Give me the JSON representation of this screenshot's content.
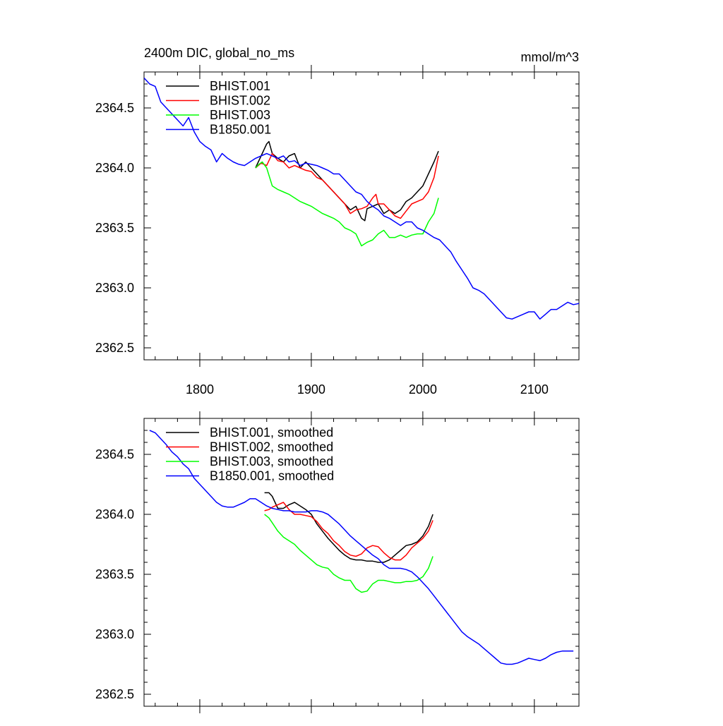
{
  "figure": {
    "title_left": "2400m DIC, global_no_ms",
    "title_right": "mmol/m^3"
  },
  "chart_data": [
    {
      "type": "line",
      "panel": "top",
      "title": "2400m DIC, global_no_ms",
      "units": "mmol/m^3",
      "xlim": [
        1750,
        2140
      ],
      "ylim": [
        2362.4,
        2364.8
      ],
      "xticks": [
        1800,
        1900,
        2000,
        2100
      ],
      "xtick_labels": [
        "1800",
        "1900",
        "2000",
        "2100"
      ],
      "yticks": [
        2362.5,
        2363.0,
        2363.5,
        2364.0,
        2364.5
      ],
      "ytick_labels": [
        "2362.5",
        "2363.0",
        "2363.5",
        "2364.0",
        "2364.5"
      ],
      "legend_position": "top-left",
      "series": [
        {
          "name": "BHIST.001",
          "color": "#000000",
          "x": [
            1850,
            1855,
            1860,
            1862,
            1865,
            1870,
            1875,
            1880,
            1885,
            1890,
            1895,
            1900,
            1905,
            1910,
            1915,
            1920,
            1925,
            1930,
            1935,
            1940,
            1945,
            1948,
            1950,
            1955,
            1960,
            1965,
            1970,
            1975,
            1980,
            1985,
            1990,
            1995,
            2000,
            2005,
            2010,
            2014
          ],
          "y": [
            2364.0,
            2364.1,
            2364.2,
            2364.22,
            2364.12,
            2364.08,
            2364.05,
            2364.1,
            2364.12,
            2364.0,
            2364.05,
            2364.0,
            2363.95,
            2363.9,
            2363.85,
            2363.8,
            2363.75,
            2363.7,
            2363.65,
            2363.68,
            2363.58,
            2363.56,
            2363.66,
            2363.68,
            2363.7,
            2363.62,
            2363.65,
            2363.62,
            2363.65,
            2363.72,
            2363.75,
            2363.8,
            2363.85,
            2363.95,
            2364.05,
            2364.14
          ]
        },
        {
          "name": "BHIST.002",
          "color": "#ff0000",
          "x": [
            1850,
            1855,
            1860,
            1865,
            1870,
            1875,
            1880,
            1885,
            1890,
            1895,
            1900,
            1905,
            1910,
            1915,
            1920,
            1925,
            1930,
            1935,
            1940,
            1945,
            1950,
            1955,
            1958,
            1960,
            1965,
            1970,
            1975,
            1980,
            1985,
            1990,
            1995,
            2000,
            2005,
            2010,
            2014
          ],
          "y": [
            2364.0,
            2364.04,
            2364.02,
            2364.12,
            2364.06,
            2364.05,
            2364.0,
            2364.02,
            2364.0,
            2363.98,
            2363.97,
            2363.92,
            2363.9,
            2363.85,
            2363.8,
            2363.75,
            2363.7,
            2363.62,
            2363.65,
            2363.66,
            2363.68,
            2363.75,
            2363.78,
            2363.7,
            2363.7,
            2363.65,
            2363.6,
            2363.58,
            2363.64,
            2363.7,
            2363.72,
            2363.74,
            2363.8,
            2363.92,
            2364.1
          ]
        },
        {
          "name": "BHIST.003",
          "color": "#00ff00",
          "x": [
            1850,
            1853,
            1856,
            1860,
            1865,
            1870,
            1875,
            1880,
            1885,
            1890,
            1895,
            1900,
            1905,
            1910,
            1915,
            1920,
            1925,
            1930,
            1935,
            1940,
            1945,
            1950,
            1955,
            1960,
            1965,
            1970,
            1975,
            1980,
            1985,
            1990,
            1995,
            2000,
            2005,
            2010,
            2014
          ],
          "y": [
            2364.0,
            2364.03,
            2364.05,
            2364.0,
            2363.85,
            2363.82,
            2363.8,
            2363.78,
            2363.75,
            2363.72,
            2363.7,
            2363.68,
            2363.65,
            2363.62,
            2363.6,
            2363.58,
            2363.55,
            2363.5,
            2363.48,
            2363.45,
            2363.35,
            2363.38,
            2363.4,
            2363.45,
            2363.48,
            2363.42,
            2363.42,
            2363.44,
            2363.42,
            2363.44,
            2363.45,
            2363.45,
            2363.55,
            2363.62,
            2363.75
          ]
        },
        {
          "name": "B1850.001",
          "color": "#0000ff",
          "x": [
            1750,
            1755,
            1760,
            1765,
            1770,
            1775,
            1780,
            1785,
            1790,
            1795,
            1800,
            1805,
            1810,
            1815,
            1820,
            1825,
            1830,
            1835,
            1840,
            1845,
            1850,
            1855,
            1860,
            1865,
            1870,
            1875,
            1880,
            1885,
            1890,
            1895,
            1900,
            1905,
            1910,
            1915,
            1920,
            1925,
            1930,
            1935,
            1940,
            1945,
            1950,
            1955,
            1960,
            1965,
            1970,
            1975,
            1980,
            1985,
            1990,
            1995,
            2000,
            2005,
            2010,
            2015,
            2020,
            2025,
            2030,
            2035,
            2040,
            2045,
            2050,
            2055,
            2060,
            2065,
            2070,
            2075,
            2080,
            2085,
            2090,
            2095,
            2100,
            2105,
            2110,
            2115,
            2120,
            2125,
            2130,
            2135,
            2140
          ],
          "y": [
            2364.75,
            2364.7,
            2364.68,
            2364.55,
            2364.5,
            2364.45,
            2364.4,
            2364.35,
            2364.42,
            2364.3,
            2364.22,
            2364.18,
            2364.15,
            2364.05,
            2364.12,
            2364.08,
            2364.05,
            2364.03,
            2364.02,
            2364.05,
            2364.08,
            2364.1,
            2364.12,
            2364.1,
            2364.08,
            2364.1,
            2364.05,
            2364.06,
            2364.02,
            2364.04,
            2364.03,
            2364.02,
            2364.0,
            2363.98,
            2363.95,
            2363.95,
            2363.9,
            2363.85,
            2363.8,
            2363.78,
            2363.72,
            2363.68,
            2363.65,
            2363.6,
            2363.58,
            2363.55,
            2363.52,
            2363.55,
            2363.55,
            2363.5,
            2363.48,
            2363.45,
            2363.42,
            2363.4,
            2363.35,
            2363.3,
            2363.22,
            2363.15,
            2363.08,
            2363.0,
            2362.98,
            2362.95,
            2362.9,
            2362.85,
            2362.8,
            2362.75,
            2362.74,
            2362.76,
            2362.78,
            2362.8,
            2362.8,
            2362.74,
            2362.78,
            2362.82,
            2362.82,
            2362.85,
            2362.88,
            2362.86,
            2362.87
          ]
        }
      ]
    },
    {
      "type": "line",
      "panel": "bottom",
      "xlim": [
        1750,
        2140
      ],
      "ylim": [
        2362.4,
        2364.8
      ],
      "xticks": [
        1800,
        1900,
        2000,
        2100
      ],
      "yticks": [
        2362.5,
        2363.0,
        2363.5,
        2364.0,
        2364.5
      ],
      "ytick_labels": [
        "2362.5",
        "2363.0",
        "2363.5",
        "2364.0",
        "2364.5"
      ],
      "legend_position": "top-left",
      "series": [
        {
          "name": "BHIST.001, smoothed",
          "color": "#000000",
          "x": [
            1858,
            1862,
            1865,
            1870,
            1875,
            1880,
            1885,
            1890,
            1895,
            1900,
            1905,
            1910,
            1915,
            1920,
            1925,
            1930,
            1935,
            1940,
            1945,
            1950,
            1955,
            1960,
            1965,
            1970,
            1975,
            1980,
            1985,
            1990,
            1995,
            2000,
            2005,
            2009
          ],
          "y": [
            2364.18,
            2364.18,
            2364.15,
            2364.05,
            2364.05,
            2364.08,
            2364.1,
            2364.07,
            2364.04,
            2364.0,
            2363.92,
            2363.86,
            2363.8,
            2363.75,
            2363.7,
            2363.66,
            2363.63,
            2363.62,
            2363.62,
            2363.61,
            2363.61,
            2363.6,
            2363.6,
            2363.62,
            2363.66,
            2363.7,
            2363.74,
            2363.75,
            2363.77,
            2363.82,
            2363.9,
            2364.0
          ]
        },
        {
          "name": "BHIST.002, smoothed",
          "color": "#ff0000",
          "x": [
            1858,
            1862,
            1865,
            1870,
            1875,
            1880,
            1885,
            1890,
            1895,
            1900,
            1905,
            1910,
            1915,
            1920,
            1925,
            1930,
            1935,
            1940,
            1945,
            1950,
            1955,
            1960,
            1965,
            1970,
            1975,
            1980,
            1985,
            1990,
            1995,
            2000,
            2005,
            2009
          ],
          "y": [
            2364.03,
            2364.04,
            2364.06,
            2364.08,
            2364.1,
            2364.04,
            2364.0,
            2364.0,
            2363.99,
            2363.98,
            2363.94,
            2363.88,
            2363.84,
            2363.78,
            2363.74,
            2363.69,
            2363.66,
            2363.65,
            2363.67,
            2363.72,
            2363.74,
            2363.73,
            2363.68,
            2363.64,
            2363.62,
            2363.62,
            2363.66,
            2363.72,
            2363.76,
            2363.8,
            2363.86,
            2363.95
          ]
        },
        {
          "name": "BHIST.003, smoothed",
          "color": "#00ff00",
          "x": [
            1858,
            1862,
            1865,
            1870,
            1875,
            1880,
            1885,
            1890,
            1895,
            1900,
            1905,
            1910,
            1915,
            1920,
            1925,
            1930,
            1935,
            1940,
            1945,
            1950,
            1955,
            1960,
            1965,
            1970,
            1975,
            1980,
            1985,
            1990,
            1995,
            2000,
            2005,
            2009
          ],
          "y": [
            2364.0,
            2363.97,
            2363.93,
            2363.86,
            2363.81,
            2363.78,
            2363.75,
            2363.7,
            2363.66,
            2363.62,
            2363.58,
            2363.56,
            2363.55,
            2363.5,
            2363.47,
            2363.45,
            2363.45,
            2363.38,
            2363.35,
            2363.36,
            2363.42,
            2363.45,
            2363.45,
            2363.44,
            2363.43,
            2363.43,
            2363.44,
            2363.44,
            2363.45,
            2363.48,
            2363.55,
            2363.65
          ]
        },
        {
          "name": "B1850.001, smoothed",
          "color": "#0000ff",
          "x": [
            1755,
            1760,
            1765,
            1770,
            1775,
            1780,
            1785,
            1790,
            1795,
            1800,
            1805,
            1810,
            1815,
            1820,
            1825,
            1830,
            1835,
            1840,
            1845,
            1850,
            1855,
            1860,
            1865,
            1870,
            1875,
            1880,
            1885,
            1890,
            1895,
            1900,
            1905,
            1910,
            1915,
            1920,
            1925,
            1930,
            1935,
            1940,
            1945,
            1950,
            1955,
            1960,
            1965,
            1970,
            1975,
            1980,
            1985,
            1990,
            1995,
            2000,
            2005,
            2010,
            2015,
            2020,
            2025,
            2030,
            2035,
            2040,
            2045,
            2050,
            2055,
            2060,
            2065,
            2070,
            2075,
            2080,
            2085,
            2090,
            2095,
            2100,
            2105,
            2110,
            2115,
            2120,
            2125,
            2130,
            2135
          ],
          "y": [
            2364.7,
            2364.68,
            2364.63,
            2364.58,
            2364.52,
            2364.48,
            2364.42,
            2364.38,
            2364.3,
            2364.25,
            2364.2,
            2364.15,
            2364.1,
            2364.07,
            2364.06,
            2364.06,
            2364.08,
            2364.1,
            2364.13,
            2364.13,
            2364.1,
            2364.07,
            2364.05,
            2364.04,
            2364.03,
            2364.03,
            2364.02,
            2364.02,
            2364.02,
            2364.03,
            2364.03,
            2364.02,
            2364.0,
            2363.96,
            2363.92,
            2363.87,
            2363.82,
            2363.78,
            2363.74,
            2363.7,
            2363.66,
            2363.63,
            2363.58,
            2363.55,
            2363.55,
            2363.55,
            2363.54,
            2363.52,
            2363.48,
            2363.43,
            2363.38,
            2363.32,
            2363.26,
            2363.2,
            2363.14,
            2363.08,
            2363.02,
            2362.98,
            2362.95,
            2362.92,
            2362.88,
            2362.84,
            2362.8,
            2362.76,
            2362.75,
            2362.75,
            2362.76,
            2362.78,
            2362.8,
            2362.79,
            2362.78,
            2362.8,
            2362.83,
            2362.85,
            2362.86,
            2362.86,
            2362.86
          ]
        }
      ]
    }
  ]
}
